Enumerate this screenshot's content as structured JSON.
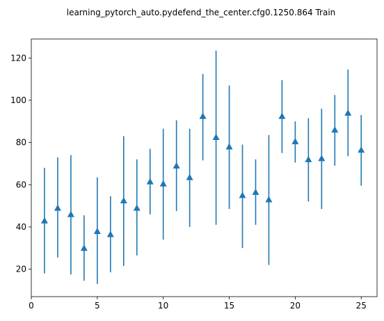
{
  "chart_data": {
    "type": "scatter",
    "title": "learning_pytorch_auto.pydefend_the_center.cfg0.1250.864 Train",
    "xlabel": "",
    "ylabel": "",
    "xlim": [
      0,
      26.2
    ],
    "ylim": [
      7,
      129
    ],
    "xticks": [
      0,
      5,
      10,
      15,
      20,
      25
    ],
    "yticks": [
      20,
      40,
      60,
      80,
      100,
      120
    ],
    "grid": false,
    "marker": "triangle-up",
    "color": "#1f77b4",
    "series": [
      {
        "x": [
          1,
          2,
          3,
          4,
          5,
          6,
          7,
          8,
          9,
          10,
          11,
          12,
          13,
          14,
          15,
          16,
          17,
          18,
          19,
          20,
          21,
          22,
          23,
          24,
          25
        ],
        "y": [
          43,
          49,
          46,
          30,
          38,
          36.5,
          52.5,
          49,
          61.5,
          60.5,
          69,
          63.5,
          92.5,
          82.5,
          78,
          55,
          56.5,
          53,
          92.5,
          80.5,
          72,
          72.5,
          86,
          94,
          76.5
        ],
        "err_low": [
          18,
          25.5,
          17.5,
          14.5,
          13,
          18.5,
          21.5,
          26.5,
          46,
          34,
          47.5,
          40,
          71.5,
          41,
          48.5,
          30,
          41,
          22,
          75,
          70.5,
          52,
          48.5,
          69,
          73.5,
          59.5
        ],
        "err_high": [
          68,
          73,
          74,
          45.5,
          63.5,
          54.5,
          83,
          72,
          77,
          86.5,
          90.5,
          86.5,
          112.5,
          123.5,
          107,
          79,
          72,
          83.5,
          109.5,
          90,
          91.5,
          96,
          102.5,
          114.5,
          93
        ]
      }
    ]
  }
}
